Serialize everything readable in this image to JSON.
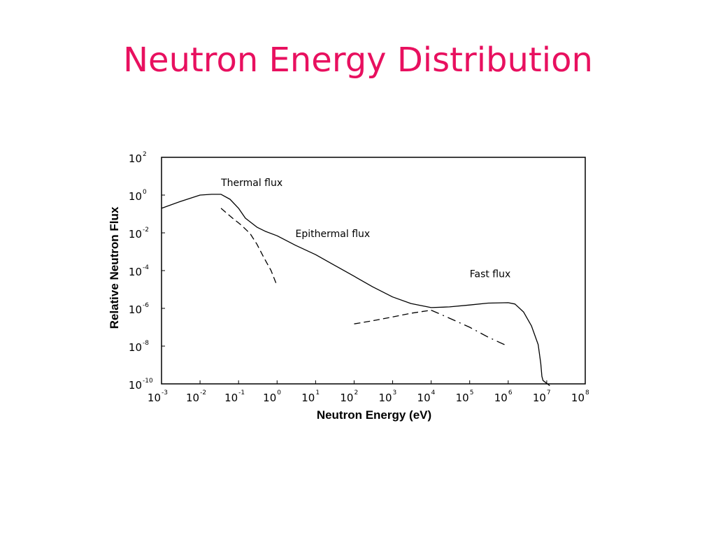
{
  "slide": {
    "title": "Neutron Energy Distribution",
    "title_color": "#e8105f"
  },
  "chart_data": {
    "type": "line",
    "scale": "log-log",
    "xlabel": "Neutron Energy (eV)",
    "ylabel": "Relative Neutron Flux",
    "xlim": [
      0.001,
      100000000
    ],
    "ylim": [
      1e-10,
      100
    ],
    "x_ticks": [
      {
        "base": "10",
        "exp": "-3",
        "value": 0.001
      },
      {
        "base": "10",
        "exp": "-2",
        "value": 0.01
      },
      {
        "base": "10",
        "exp": "-1",
        "value": 0.1
      },
      {
        "base": "10",
        "exp": "0",
        "value": 1
      },
      {
        "base": "10",
        "exp": "1",
        "value": 10
      },
      {
        "base": "10",
        "exp": "2",
        "value": 100
      },
      {
        "base": "10",
        "exp": "3",
        "value": 1000
      },
      {
        "base": "10",
        "exp": "4",
        "value": 10000
      },
      {
        "base": "10",
        "exp": "5",
        "value": 100000
      },
      {
        "base": "10",
        "exp": "6",
        "value": 1000000
      },
      {
        "base": "10",
        "exp": "7",
        "value": 10000000
      },
      {
        "base": "10",
        "exp": "8",
        "value": 100000000
      }
    ],
    "y_ticks": [
      {
        "base": "10",
        "exp": "2",
        "value": 100
      },
      {
        "base": "10",
        "exp": "0",
        "value": 1
      },
      {
        "base": "10",
        "exp": "-2",
        "value": 0.01
      },
      {
        "base": "10",
        "exp": "-4",
        "value": 0.0001
      },
      {
        "base": "10",
        "exp": "-6",
        "value": 1e-06
      },
      {
        "base": "10",
        "exp": "-8",
        "value": 1e-08
      },
      {
        "base": "10",
        "exp": "-10",
        "value": 1e-10
      }
    ],
    "grid": false,
    "legend": "none",
    "series": [
      {
        "key": "total",
        "style": "solid",
        "x": [
          0.001,
          0.003,
          0.01,
          0.02,
          0.035,
          0.06,
          0.1,
          0.15,
          0.3,
          0.5,
          1,
          3,
          10,
          30,
          100,
          300,
          1000,
          3000,
          10000,
          30000,
          100000,
          300000,
          1000000,
          1500000,
          2500000,
          4000000,
          6000000,
          7000000,
          7500000,
          8000000,
          12000000
        ],
        "y": [
          0.2,
          0.45,
          1.0,
          1.1,
          1.1,
          0.6,
          0.2,
          0.06,
          0.02,
          0.012,
          0.007,
          0.0022,
          0.0007,
          0.0002,
          5e-05,
          1.4e-05,
          4e-06,
          1.8e-06,
          1.1e-06,
          1.2e-06,
          1.5e-06,
          1.9e-06,
          2e-06,
          1.7e-06,
          6.5e-07,
          1.2e-07,
          1.2e-08,
          1.2e-09,
          2.5e-10,
          1.5e-10,
          8e-11
        ]
      },
      {
        "key": "thermal",
        "style": "dashed",
        "x": [
          0.035,
          0.07,
          0.12,
          0.2,
          0.3,
          0.45,
          0.7,
          1
        ],
        "y": [
          0.2,
          0.06,
          0.025,
          0.009,
          0.0025,
          0.0005,
          0.0001,
          1.55e-05
        ]
      },
      {
        "key": "epithermal",
        "style": "dash-dot",
        "x": [
          10000,
          30000,
          100000,
          300000,
          800000
        ],
        "y": [
          8e-07,
          3e-07,
          1e-07,
          3e-08,
          1.2e-08
        ]
      },
      {
        "key": "fast",
        "style": "dashed",
        "x": [
          100,
          300,
          1000,
          3000,
          10000
        ],
        "y": [
          1.5e-07,
          2.2e-07,
          3.5e-07,
          5.5e-07,
          8e-07
        ]
      }
    ],
    "annotations": [
      {
        "text": "Thermal flux",
        "x": 0.035,
        "y": 3
      },
      {
        "text": "Epithermal flux",
        "x": 3,
        "y": 0.006
      },
      {
        "text": "Fast flux",
        "x": 100000,
        "y": 4.5e-05
      }
    ]
  }
}
